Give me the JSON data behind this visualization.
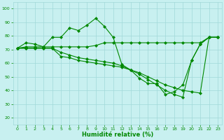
{
  "xlabel": "Humidité relative (%)",
  "background_color": "#c8f0f0",
  "grid_color": "#a0d8d8",
  "line_color": "#008800",
  "xlim": [
    -0.5,
    23.5
  ],
  "ylim": [
    15,
    105
  ],
  "yticks": [
    20,
    30,
    40,
    50,
    60,
    70,
    80,
    90,
    100
  ],
  "xticks": [
    0,
    1,
    2,
    3,
    4,
    5,
    6,
    7,
    8,
    9,
    10,
    11,
    12,
    13,
    14,
    15,
    16,
    17,
    18,
    19,
    20,
    21,
    22,
    23
  ],
  "series1": [
    71,
    75,
    74,
    72,
    79,
    79,
    86,
    84,
    88,
    93,
    87,
    79,
    59,
    55,
    49,
    45,
    45,
    37,
    39,
    44,
    62,
    74,
    79,
    79
  ],
  "series2": [
    71,
    72,
    72,
    72,
    72,
    72,
    72,
    72,
    72,
    73,
    75,
    75,
    75,
    75,
    75,
    75,
    75,
    75,
    75,
    75,
    75,
    75,
    79,
    79
  ],
  "series3": [
    71,
    71,
    71,
    71,
    71,
    65,
    64,
    62,
    61,
    60,
    59,
    58,
    57,
    55,
    53,
    50,
    47,
    44,
    42,
    40,
    39,
    38,
    79,
    79
  ],
  "series4": [
    71,
    71,
    71,
    71,
    71,
    68,
    66,
    64,
    63,
    62,
    61,
    60,
    58,
    55,
    52,
    48,
    44,
    40,
    37,
    35,
    62,
    74,
    79,
    79
  ]
}
